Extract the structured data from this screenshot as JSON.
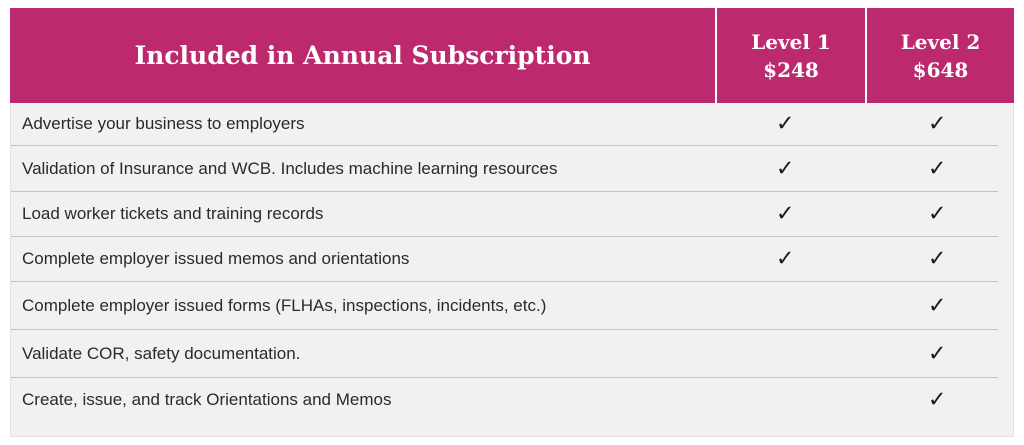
{
  "header": {
    "title": "Included in Annual Subscription",
    "levels": [
      {
        "name": "Level 1",
        "price": "$248"
      },
      {
        "name": "Level 2",
        "price": "$648"
      }
    ]
  },
  "check_symbol": "✓",
  "colors": {
    "header": "#bc2a6d",
    "body": "#f1f1f1"
  },
  "rows": [
    {
      "feature": "Advertise your business to employers",
      "level1": true,
      "level2": true
    },
    {
      "feature": "Validation of Insurance and WCB. Includes machine learning resources",
      "level1": true,
      "level2": true
    },
    {
      "feature": "Load worker tickets and training records",
      "level1": true,
      "level2": true
    },
    {
      "feature": "Complete employer issued memos and orientations",
      "level1": true,
      "level2": true
    },
    {
      "feature": "Complete employer issued forms (FLHAs, inspections, incidents, etc.)",
      "level1": false,
      "level2": true
    },
    {
      "feature": "Validate COR, safety documentation.",
      "level1": false,
      "level2": true
    },
    {
      "feature": "Create, issue, and track Orientations and Memos",
      "level1": false,
      "level2": true
    }
  ]
}
